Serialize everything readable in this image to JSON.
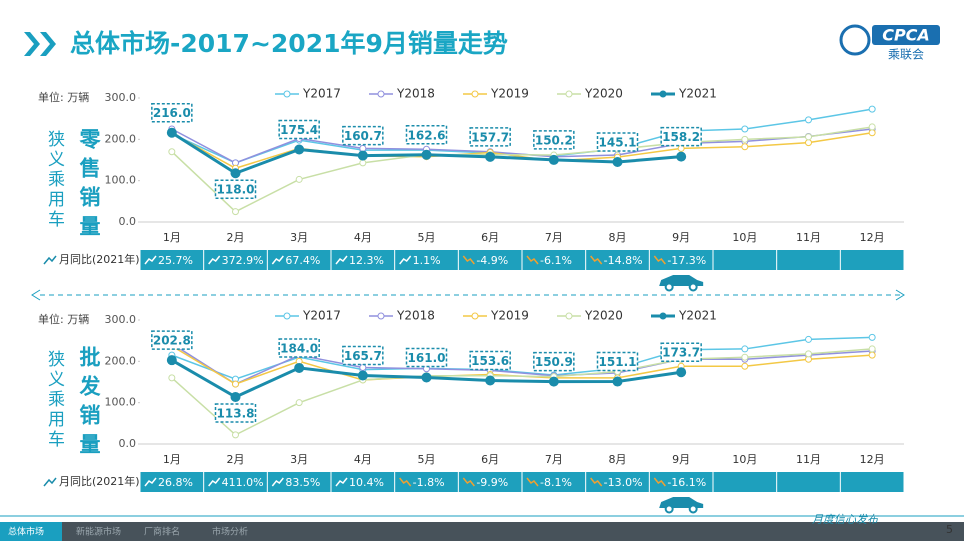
{
  "header": {
    "title": "总体市场-2017~2021年9月销量走势",
    "logo": "CPCA",
    "logo_sub": "乘联会"
  },
  "chart_data": [
    {
      "type": "line",
      "side_title": "狭义乘用车",
      "title": "零售销量",
      "unit": "单位: 万辆",
      "categories": [
        "1月",
        "2月",
        "3月",
        "4月",
        "5月",
        "6月",
        "7月",
        "8月",
        "9月",
        "10月",
        "11月",
        "12月"
      ],
      "ylim": [
        0,
        300
      ],
      "yticks": [
        {
          "value": 0,
          "label": "0.0"
        },
        {
          "value": 100,
          "label": "100.0"
        },
        {
          "value": 200,
          "label": "200.0"
        },
        {
          "value": 300,
          "label": "300.0"
        }
      ],
      "series": [
        {
          "name": "Y2017",
          "color": "#5cc6e6",
          "values": [
            213,
            143,
            198,
            174,
            174,
            167,
            160,
            177,
            220,
            225,
            247,
            273
          ]
        },
        {
          "name": "Y2018",
          "color": "#9090de",
          "values": [
            225,
            143,
            202,
            178,
            176,
            170,
            158,
            162,
            190,
            195,
            207,
            225
          ]
        },
        {
          "name": "Y2019",
          "color": "#f3c845",
          "values": [
            215,
            130,
            178,
            160,
            158,
            168,
            148,
            157,
            178,
            182,
            192,
            216
          ]
        },
        {
          "name": "Y2020",
          "color": "#c8dfa6",
          "values": [
            170,
            25,
            103,
            143,
            163,
            163,
            162,
            176,
            192,
            200,
            206,
            230
          ]
        },
        {
          "name": "Y2021",
          "color": "#1a8cab",
          "values": [
            216,
            118,
            175.4,
            160.7,
            162.6,
            157.7,
            150.2,
            145.1,
            158.2,
            null,
            null,
            null
          ],
          "value_labels": [
            "216.0",
            "118.0",
            "175.4",
            "160.7",
            "162.6",
            "157.7",
            "150.2",
            "145.1",
            "158.2",
            null,
            null,
            null
          ]
        }
      ],
      "yoy_title": "月同比(2021年)",
      "yoy": [
        "25.7%",
        "372.9%",
        "67.4%",
        "12.3%",
        "1.1%",
        "-4.9%",
        "-6.1%",
        "-14.8%",
        "-17.3%",
        null,
        null,
        null
      ]
    },
    {
      "type": "line",
      "side_title": "狭义乘用车",
      "title": "批发销量",
      "unit": "单位: 万辆",
      "categories": [
        "1月",
        "2月",
        "3月",
        "4月",
        "5月",
        "6月",
        "7月",
        "8月",
        "9月",
        "10月",
        "11月",
        "12月"
      ],
      "ylim": [
        0,
        300
      ],
      "yticks": [
        {
          "value": 0,
          "label": "0.0"
        },
        {
          "value": 100,
          "label": "100.0"
        },
        {
          "value": 200,
          "label": "200.0"
        },
        {
          "value": 300,
          "label": "300.0"
        }
      ],
      "series": [
        {
          "name": "Y2017",
          "color": "#5cc6e6",
          "values": [
            215,
            157,
            210,
            180,
            183,
            180,
            167,
            183,
            228,
            230,
            253,
            258
          ]
        },
        {
          "name": "Y2018",
          "color": "#9090de",
          "values": [
            243,
            145,
            215,
            185,
            182,
            178,
            165,
            172,
            205,
            205,
            215,
            225
          ]
        },
        {
          "name": "Y2019",
          "color": "#f3c845",
          "values": [
            237,
            145,
            200,
            155,
            163,
            168,
            160,
            160,
            188,
            188,
            205,
            215
          ]
        },
        {
          "name": "Y2020",
          "color": "#c8dfa6",
          "values": [
            160,
            22,
            100,
            155,
            165,
            165,
            163,
            175,
            205,
            210,
            218,
            230
          ]
        },
        {
          "name": "Y2021",
          "color": "#1a8cab",
          "values": [
            202.8,
            113.8,
            184,
            165.7,
            161,
            153.6,
            150.9,
            151.1,
            173.7,
            null,
            null,
            null
          ],
          "value_labels": [
            "202.8",
            "113.8",
            "184.0",
            "165.7",
            "161.0",
            "153.6",
            "150.9",
            "151.1",
            "173.7",
            null,
            null,
            null
          ]
        }
      ],
      "yoy_title": "月同比(2021年)",
      "yoy": [
        "26.8%",
        "411.0%",
        "83.5%",
        "10.4%",
        "-1.8%",
        "-9.9%",
        "-8.1%",
        "-13.0%",
        "-16.1%",
        null,
        null,
        null
      ]
    }
  ],
  "footer": {
    "tabs": [
      "总体市场",
      "新能源市场",
      "厂商排名",
      "市场分析"
    ],
    "slogan": "月度信心发布",
    "page": "5"
  }
}
